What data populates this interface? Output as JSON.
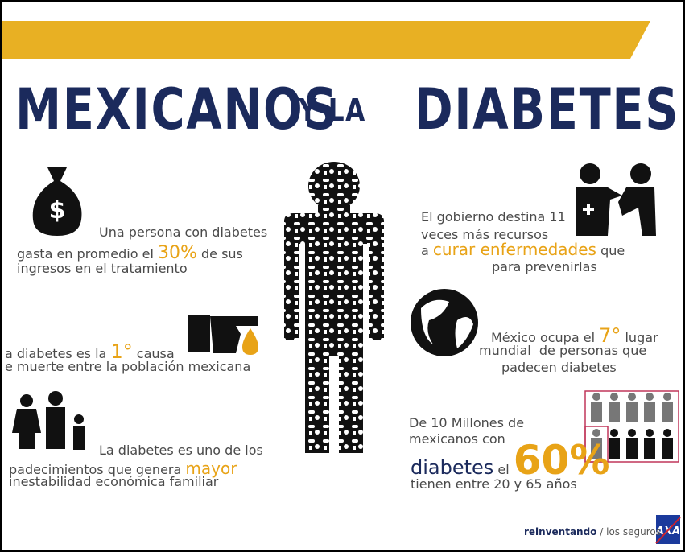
{
  "header": {
    "title_left": "MEXICANOS",
    "title_middle": "Y LA",
    "title_right": "DIABETES"
  },
  "facts": [
    {
      "lines": [
        [
          "Una persona con diabetes"
        ],
        [
          "gasta en promedio el ",
          {
            "text": "30%",
            "color": "#e8a317"
          },
          " de sus"
        ],
        [
          "ingresos en el tratamiento"
        ]
      ]
    },
    {
      "lines": [
        [
          "a diabetes es la ",
          {
            "text": "1°",
            "color": "#e8a317"
          },
          " causa"
        ],
        [
          "e muerte entre la población mexicana"
        ]
      ]
    },
    {
      "lines": [
        [
          "La diabetes es uno de los"
        ],
        [
          "padecimientos que genera ",
          {
            "text": "mayor",
            "color": "#e8a317"
          }
        ],
        [
          "inestabilidad económica familiar"
        ]
      ]
    },
    {
      "lines": [
        [
          "El gobierno destina 11"
        ],
        [
          "veces más recursos"
        ],
        [
          "a ",
          {
            "text": "curar enfermedades",
            "color": "#e8a317"
          },
          " que"
        ],
        [
          "para prevenirlas"
        ]
      ]
    },
    {
      "lines": [
        [
          "México ocupa el ",
          {
            "text": "7°",
            "color": "#e8a317"
          },
          " lugar"
        ],
        [
          "mundial  de personas que"
        ],
        [
          "padecen diabetes"
        ]
      ]
    },
    {
      "lines": [
        [
          "De 10 Millones de"
        ],
        [
          "mexicanos con"
        ],
        [
          {
            "text": "diabetes",
            "color": "#1b2a5c"
          },
          " el ",
          {
            "text": "60%",
            "color": "#e8a317"
          }
        ],
        [
          "tienen entre 20 y 65 años"
        ]
      ]
    }
  ],
  "footer": {
    "brand": "reinventando",
    "tagline": "/ los seguros",
    "logo": "AXA"
  }
}
